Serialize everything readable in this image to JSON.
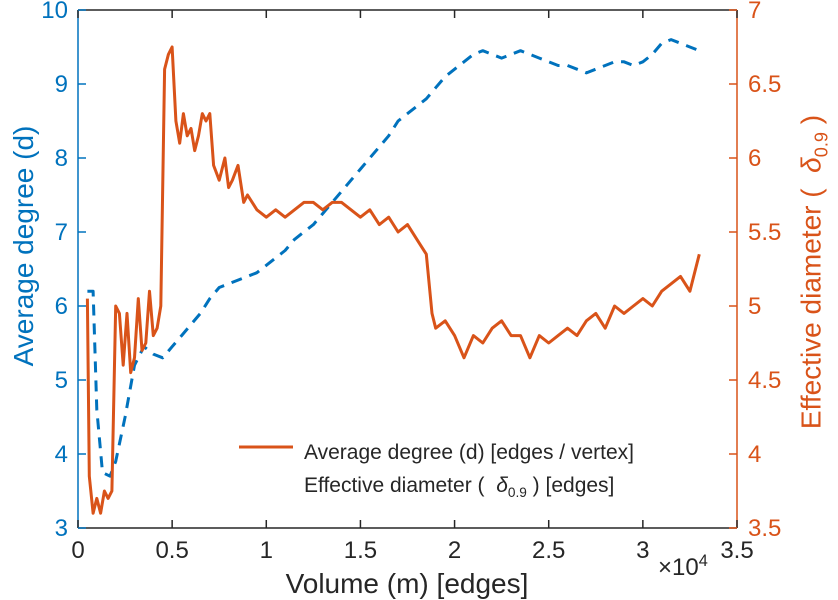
{
  "figure": {
    "x_axis": {
      "label": "Volume (m) [edges]",
      "exponent_prefix": "×10",
      "exponent": "4",
      "ticks": [
        "0",
        "0.5",
        "1",
        "1.5",
        "2",
        "2.5",
        "3",
        "3.5"
      ],
      "tick_values": [
        0,
        0.5,
        1,
        1.5,
        2,
        2.5,
        3,
        3.5
      ],
      "color": "#262626"
    },
    "y_axis_left": {
      "label": "Average degree (d)",
      "ticks": [
        "3",
        "4",
        "5",
        "6",
        "7",
        "8",
        "9",
        "10"
      ],
      "tick_values": [
        3,
        4,
        5,
        6,
        7,
        8,
        9,
        10
      ],
      "color": "#0072BD"
    },
    "y_axis_right": {
      "label_prefix": "Effective diameter (  ",
      "label_delta": "δ",
      "label_sub": "0.9",
      "label_suffix": " )",
      "ticks": [
        "3.5",
        "4",
        "4.5",
        "5",
        "5.5",
        "6",
        "6.5",
        "7"
      ],
      "tick_values": [
        3.5,
        4,
        4.5,
        5,
        5.5,
        6,
        6.5,
        7
      ],
      "color": "#D95319"
    },
    "legend": {
      "items": [
        {
          "label": "Average degree (d) [edges / vertex]",
          "color": "#0072BD",
          "line_style": "dashed"
        },
        {
          "prefix": "Effective diameter (  ",
          "delta": "δ",
          "sub": "0.9",
          "suffix": " ) [edges]",
          "color": "#D95319",
          "line_style": "solid"
        }
      ]
    }
  },
  "chart_data": {
    "type": "line",
    "title": "",
    "xlabel": "Volume (m) [edges]",
    "x_unit_exponent": 4,
    "xlim": [
      0,
      3.5
    ],
    "ylabel_left": "Average degree (d)",
    "ylim_left": [
      3,
      10
    ],
    "ylabel_right": "Effective diameter ( δ_0.9 )",
    "ylim_right": [
      3.5,
      7
    ],
    "grid": false,
    "legend_position": "inside-bottom-center",
    "series": [
      {
        "name": "Average degree (d) [edges / vertex]",
        "axis": "left",
        "color": "#0072BD",
        "line_style": "dashed",
        "x": [
          0.05,
          0.08,
          0.1,
          0.13,
          0.17,
          0.2,
          0.25,
          0.3,
          0.35,
          0.4,
          0.45,
          0.5,
          0.55,
          0.6,
          0.65,
          0.7,
          0.75,
          0.8,
          0.85,
          0.9,
          0.95,
          1.0,
          1.05,
          1.1,
          1.15,
          1.2,
          1.25,
          1.3,
          1.35,
          1.4,
          1.45,
          1.5,
          1.55,
          1.6,
          1.65,
          1.7,
          1.75,
          1.8,
          1.85,
          1.9,
          1.95,
          2.0,
          2.05,
          2.1,
          2.15,
          2.2,
          2.25,
          2.3,
          2.35,
          2.4,
          2.45,
          2.5,
          2.55,
          2.6,
          2.65,
          2.7,
          2.75,
          2.8,
          2.85,
          2.9,
          2.95,
          3.0,
          3.05,
          3.1,
          3.15,
          3.2,
          3.25,
          3.3
        ],
        "y": [
          6.2,
          6.2,
          4.6,
          3.75,
          3.7,
          3.9,
          4.5,
          5.2,
          5.45,
          5.35,
          5.3,
          5.45,
          5.6,
          5.75,
          5.9,
          6.1,
          6.25,
          6.3,
          6.35,
          6.4,
          6.45,
          6.55,
          6.65,
          6.75,
          6.9,
          7.0,
          7.1,
          7.25,
          7.4,
          7.55,
          7.7,
          7.85,
          8.0,
          8.15,
          8.3,
          8.5,
          8.6,
          8.7,
          8.8,
          8.95,
          9.1,
          9.2,
          9.3,
          9.4,
          9.45,
          9.4,
          9.35,
          9.4,
          9.45,
          9.4,
          9.35,
          9.3,
          9.25,
          9.25,
          9.2,
          9.15,
          9.2,
          9.25,
          9.3,
          9.3,
          9.25,
          9.3,
          9.4,
          9.55,
          9.6,
          9.55,
          9.5,
          9.45
        ]
      },
      {
        "name": "Effective diameter ( δ_0.9 ) [edges]",
        "axis": "right",
        "color": "#D95319",
        "line_style": "solid",
        "x": [
          0.05,
          0.06,
          0.08,
          0.1,
          0.12,
          0.14,
          0.16,
          0.18,
          0.2,
          0.22,
          0.24,
          0.26,
          0.28,
          0.3,
          0.32,
          0.34,
          0.36,
          0.38,
          0.4,
          0.42,
          0.44,
          0.46,
          0.48,
          0.5,
          0.52,
          0.54,
          0.56,
          0.58,
          0.6,
          0.62,
          0.64,
          0.66,
          0.68,
          0.7,
          0.72,
          0.75,
          0.78,
          0.8,
          0.82,
          0.85,
          0.88,
          0.9,
          0.95,
          1.0,
          1.05,
          1.1,
          1.15,
          1.2,
          1.25,
          1.3,
          1.35,
          1.4,
          1.45,
          1.5,
          1.55,
          1.6,
          1.65,
          1.7,
          1.75,
          1.8,
          1.85,
          1.88,
          1.9,
          1.95,
          2.0,
          2.05,
          2.1,
          2.15,
          2.2,
          2.25,
          2.3,
          2.35,
          2.4,
          2.45,
          2.5,
          2.55,
          2.6,
          2.65,
          2.7,
          2.75,
          2.8,
          2.85,
          2.9,
          2.95,
          3.0,
          3.05,
          3.1,
          3.15,
          3.2,
          3.25,
          3.3
        ],
        "y": [
          5.05,
          3.85,
          3.6,
          3.7,
          3.6,
          3.75,
          3.7,
          3.75,
          5.0,
          4.95,
          4.6,
          4.95,
          4.55,
          4.65,
          5.05,
          4.7,
          4.75,
          5.1,
          4.8,
          4.85,
          5.0,
          6.6,
          6.7,
          6.75,
          6.25,
          6.1,
          6.3,
          6.15,
          6.2,
          6.05,
          6.15,
          6.3,
          6.25,
          6.3,
          5.95,
          5.85,
          6.0,
          5.8,
          5.85,
          5.95,
          5.7,
          5.75,
          5.65,
          5.6,
          5.65,
          5.6,
          5.65,
          5.7,
          5.7,
          5.65,
          5.7,
          5.7,
          5.65,
          5.6,
          5.65,
          5.55,
          5.6,
          5.5,
          5.55,
          5.45,
          5.35,
          4.95,
          4.85,
          4.9,
          4.8,
          4.65,
          4.8,
          4.75,
          4.85,
          4.9,
          4.8,
          4.8,
          4.65,
          4.8,
          4.75,
          4.8,
          4.85,
          4.8,
          4.9,
          4.95,
          4.85,
          5.0,
          4.95,
          5.0,
          5.05,
          5.0,
          5.1,
          5.15,
          5.2,
          5.1,
          5.35
        ]
      }
    ]
  }
}
